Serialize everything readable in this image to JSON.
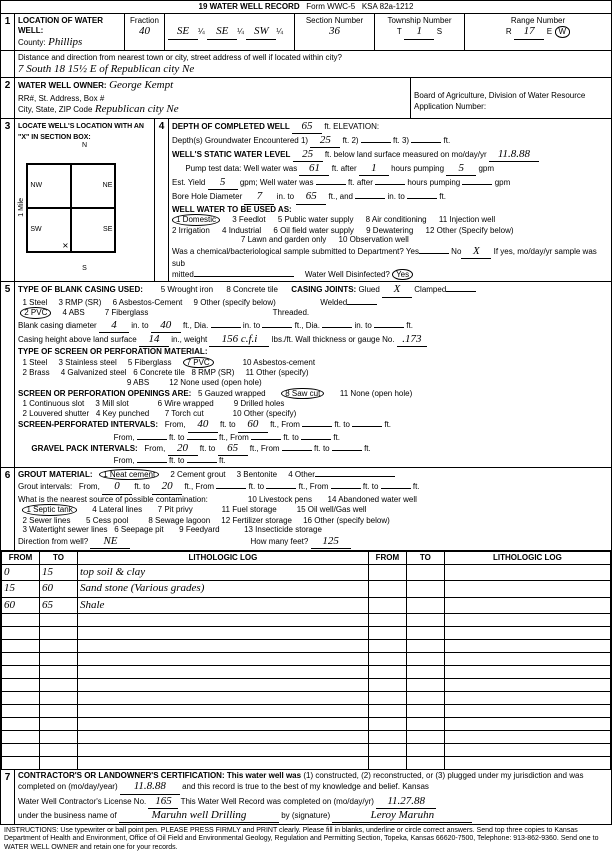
{
  "header": {
    "form_title": "19 WATER WELL RECORD",
    "form_no": "Form WWC-5",
    "ksa": "KSA 82a-1212"
  },
  "loc": {
    "title": "LOCATION OF WATER WELL:",
    "county_lbl": "County:",
    "county": "Phillips",
    "fraction_lbl": "Fraction",
    "fraction": "40",
    "q1": "SE",
    "q1_lbl": "¼",
    "q2": "SE",
    "q2_lbl": "¼",
    "q3": "SW",
    "q3_lbl": "¼",
    "section_lbl": "Section Number",
    "section": "36",
    "township_lbl": "Township Number",
    "township_t": "T",
    "township": "1",
    "township_s": "S",
    "range_lbl": "Range Number",
    "range_r": "R",
    "range": "17",
    "range_e": "E",
    "range_w": "W",
    "dir_lbl": "Distance and direction from nearest town or city, street address of well if located within city?",
    "dir": "7 South 18  15½ E of Republican city Ne"
  },
  "owner": {
    "title": "WATER WELL OWNER:",
    "rr_lbl": "RR#, St. Address, Box #",
    "name": "George Kempt",
    "csz_lbl": "City, State, ZIP Code",
    "csz": "Republican city Ne",
    "board": "Board of Agriculture, Division of Water Resource",
    "appno_lbl": "Application Number:"
  },
  "sec3": {
    "title": "LOCATE WELL'S LOCATION WITH AN \"X\" IN SECTION BOX:",
    "n": "N",
    "s": "S",
    "e": "E",
    "w": "W",
    "nw": "NW",
    "ne": "NE",
    "sw": "SW",
    "se": "SE",
    "mile": "1 Mile"
  },
  "sec4": {
    "depth_lbl": "DEPTH OF COMPLETED WELL",
    "depth": "65",
    "elev_lbl": "ft. ELEVATION:",
    "gw_lbl": "Depth(s) Groundwater Encountered",
    "gw1_lbl": "1)",
    "gw1": "25",
    "gw2_lbl": "ft. 2)",
    "gw3_lbl": "ft. 3)",
    "gwft": "ft.",
    "static_lbl": "WELL'S STATIC WATER LEVEL",
    "static": "25",
    "static_suffix": "ft. below land surface measured on mo/day/yr",
    "static_date": "11.8.88",
    "pump_lbl": "Pump test data: Well water was",
    "pump1": "61",
    "pump1_suffix": "ft. after",
    "pump_hours": "1",
    "pump_hours_suffix": "hours pumping",
    "pump_gpm": "5",
    "pump_gpm_suffix": "gpm",
    "est_lbl": "Est. Yield",
    "est": "5",
    "est_suffix": "gpm; Well water was",
    "est2_suffix": "ft. after",
    "est3_suffix": "hours pumping",
    "est4_suffix": "gpm",
    "bore_lbl": "Bore Hole Diameter",
    "bore": "7",
    "bore_in": "in. to",
    "bore_to": "65",
    "bore_ft": "ft., and",
    "bore_in2": "in. to",
    "bore_ft2": "ft.",
    "use_lbl": "WELL WATER TO BE USED AS:",
    "use1": "1 Domestic",
    "use2": "2 Irrigation",
    "use3": "3 Feedlot",
    "use4": "4 Industrial",
    "use5": "5 Public water supply",
    "use6": "6 Oil field water supply",
    "use7": "7 Lawn and garden only",
    "use8": "8 Air conditioning",
    "use9": "9 Dewatering",
    "use10": "10 Observation well",
    "use11": "11 Injection well",
    "use12": "12 Other (Specify below)",
    "chem_lbl": "Was a chemical/bacteriological sample submitted to Department? Yes",
    "chem_no": "No",
    "chem_x": "X",
    "chem_if": "If yes, mo/day/yr sample was sub",
    "mitted": "mitted",
    "disinfect": "Water Well Disinfected?",
    "dis_yes": "Yes"
  },
  "sec5": {
    "title": "TYPE OF BLANK CASING USED:",
    "c1": "1 Steel",
    "c2": "2 PVC",
    "c3": "3 RMP (SR)",
    "c4": "4 ABS",
    "c5": "5 Wrought iron",
    "c6": "6 Asbestos-Cement",
    "c7": "7 Fiberglass",
    "c8": "8 Concrete tile",
    "c9": "9 Other (specify below)",
    "joints_lbl": "CASING JOINTS:",
    "glued": "Glued",
    "glued_x": "X",
    "clamped": "Clamped",
    "welded": "Welded",
    "threaded": "Threaded.",
    "bcd_lbl": "Blank casing diameter",
    "bcd": "4",
    "bcd_in": "in. to",
    "bcd_ft": "40",
    "bcd_ft_lbl": "ft., Dia.",
    "bcd_in2": "in. to",
    "bcd_ft2": "ft., Dia.",
    "bcd_in3": "in. to",
    "bcd_ft3": "ft.",
    "cht_lbl": "Casing height above land surface",
    "cht": "14",
    "cht_in": "in., weight",
    "cht_wt": "156 c.f.i",
    "cht_lbsft": "lbs./ft. Wall thickness or gauge No.",
    "cht_g": ".173",
    "perf_title": "TYPE OF SCREEN OR PERFORATION MATERIAL:",
    "p1": "1 Steel",
    "p2": "2 Brass",
    "p3": "3 Stainless steel",
    "p4": "4 Galvanized steel",
    "p5": "5 Fiberglass",
    "p6": "6 Concrete tile",
    "p7": "7 PVC",
    "p8": "8 RMP (SR)",
    "p9": "9 ABS",
    "p10": "10 Asbestos-cement",
    "p11": "11 Other (specify)",
    "p12": "12 None used (open hole)",
    "open_lbl": "SCREEN OR PERFORATION OPENINGS ARE:",
    "o1": "1 Continuous slot",
    "o2": "2 Louvered shutter",
    "o3": "3 Mill slot",
    "o4": "4 Key punched",
    "o5": "5 Gauzed wrapped",
    "o6": "6 Wire wrapped",
    "o7": "7 Torch cut",
    "o8": "8 Saw cut",
    "o9": "9 Drilled holes",
    "o10": "10 Other (specify)",
    "o11": "11 None (open hole)",
    "spi_lbl": "SCREEN-PERFORATED INTERVALS:",
    "spi_from": "From,",
    "spi1": "40",
    "spi_to": "ft. to",
    "spi2": "60",
    "spi_ft": "ft., From",
    "spi3": "ft. to",
    "spi4": "ft.",
    "spi_from2": "From,",
    "spi_ft2": "ft. to",
    "spi_ft3": "ft., From",
    "spi_ft4": "ft. to",
    "spi_ft5": "ft.",
    "gpi_lbl": "GRAVEL PACK INTERVALS:",
    "gpi1": "20",
    "gpi2": "65"
  },
  "sec6": {
    "title": "GROUT MATERIAL:",
    "g1": "1 Neat cement",
    "g2": "2 Cement grout",
    "g3": "3 Bentonite",
    "g4": "4 Other",
    "gi_lbl": "Grout intervals:",
    "gi_from": "From,",
    "gi1": "0",
    "gi_to": "ft. to",
    "gi2": "20",
    "gi_ft": "ft., From",
    "gi3": "ft. to",
    "gi4": "ft., From",
    "gi5": "ft. to",
    "gi6": "ft.",
    "contam_lbl": "What is the nearest source of possible contamination:",
    "co1": "1 Septic tank",
    "co2": "2 Sewer lines",
    "co3": "3 Watertight sewer lines",
    "co4": "4 Lateral lines",
    "co5": "5 Cess pool",
    "co6": "6 Seepage pit",
    "co7": "7 Pit privy",
    "co8": "8 Sewage lagoon",
    "co9": "9 Feedyard",
    "co10": "10 Livestock pens",
    "co11": "11 Fuel storage",
    "co12": "12 Fertilizer storage",
    "co13": "13 Insecticide storage",
    "co14": "14 Abandoned water well",
    "co15": "15 Oil well/Gas well",
    "co16": "16 Other (specify below)",
    "dfw_lbl": "Direction from well?",
    "dfw": "NE",
    "hmf_lbl": "How many feet?",
    "hmf": "125"
  },
  "log": {
    "from_h": "FROM",
    "to_h": "TO",
    "desc_h": "LITHOLOGIC LOG",
    "rows": [
      {
        "from": "0",
        "to": "15",
        "desc": "top soil & clay"
      },
      {
        "from": "15",
        "to": "60",
        "desc": "Sand stone (Various grades)"
      },
      {
        "from": "60",
        "to": "65",
        "desc": "Shale"
      }
    ]
  },
  "sec7": {
    "cert_lbl": "CONTRACTOR'S OR LANDOWNER'S CERTIFICATION: This water well was",
    "cert_1": "(1) constructed, (2) reconstructed, or (3) plugged under my jurisdiction and was",
    "completed_lbl": "completed on (mo/day/year)",
    "completed": "11.8.88",
    "cert_2": "and this record is true to the best of my knowledge and belief. Kansas",
    "lic_lbl": "Water Well Contractor's License No.",
    "lic": "165",
    "rec_lbl": "This Water Well Record was completed on (mo/day/yr)",
    "rec_date": "11.27.88",
    "under_lbl": "under the business name of",
    "biz": "Maruhn well Drilling",
    "by_lbl": "by (signature)",
    "sig": "Leroy Maruhn"
  },
  "footer": {
    "instr": "INSTRUCTIONS: Use typewriter or ball point pen. PLEASE PRESS FIRMLY and PRINT clearly. Please fill in blanks, underline or circle correct answers. Send top three copies to Kansas Department of Health and Environment, Office of Oil Field and Environmental Geology, Regulation and Permitting Section, Topeka, Kansas 66620-7500, Telephone: 913-862-9360. Send one to WATER WELL OWNER and retain one for your records."
  }
}
